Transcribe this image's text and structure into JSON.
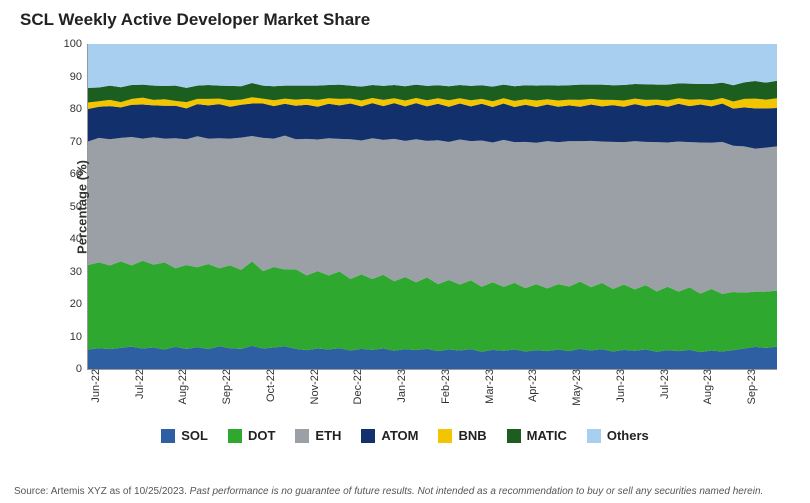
{
  "chart": {
    "type": "stacked-area-100",
    "title": "SCL Weekly Active Developer Market Share",
    "ylabel": "Percentage (%)",
    "ylim": [
      0,
      100
    ],
    "ytick_step": 10,
    "background_color": "#ffffff",
    "grid_color": "#d9d9d9",
    "axis_color": "#999999",
    "title_fontsize": 17,
    "label_fontsize": 13,
    "tick_fontsize": 11,
    "x_labels": [
      "Jun-22",
      "Jul-22",
      "Aug-22",
      "Sep-22",
      "Oct-22",
      "Nov-22",
      "Dec-22",
      "Jan-23",
      "Feb-23",
      "Mar-23",
      "Apr-23",
      "May-23",
      "Jun-23",
      "Jul-23",
      "Aug-23",
      "Sep-23"
    ],
    "points_per_label": 4,
    "series_order": [
      "SOL",
      "DOT",
      "ETH",
      "ATOM",
      "BNB",
      "MATIC",
      "Others"
    ],
    "colors": {
      "SOL": "#2e5fa3",
      "DOT": "#2fa82f",
      "ETH": "#9aa0a6",
      "ATOM": "#12306b",
      "BNB": "#f2c500",
      "MATIC": "#1b5e20",
      "Others": "#a9cff0"
    },
    "series": {
      "SOL": [
        6,
        6.4,
        6.1,
        6.5,
        6.9,
        6.3,
        6.6,
        6.0,
        6.8,
        6.2,
        6.7,
        6.1,
        7.0,
        6.4,
        6.2,
        7.1,
        6.3,
        6.6,
        7.0,
        6.2,
        5.8,
        6.3,
        6.0,
        6.4,
        5.7,
        6.2,
        5.9,
        6.3,
        5.6,
        6.1,
        5.8,
        6.2,
        5.5,
        6.0,
        5.7,
        6.1,
        5.3,
        5.9,
        5.6,
        6.0,
        5.4,
        5.8,
        5.5,
        6.0,
        5.5,
        6.2,
        5.7,
        6.1,
        5.4,
        5.9,
        5.6,
        6.0,
        5.3,
        5.8,
        5.5,
        5.9,
        5.2,
        5.7,
        5.4,
        5.8,
        6.3,
        6.8,
        6.5,
        6.9
      ],
      "DOT": [
        26,
        26.4,
        25.8,
        26.6,
        25.0,
        27.0,
        25.5,
        26.8,
        24.2,
        25.8,
        24.6,
        26.2,
        24.0,
        25.5,
        24.3,
        26.0,
        23.8,
        24.8,
        23.6,
        24.5,
        23.0,
        23.8,
        22.8,
        23.6,
        22.0,
        22.9,
        21.8,
        22.7,
        21.4,
        22.2,
        20.9,
        22.0,
        20.6,
        21.4,
        20.3,
        21.2,
        20.0,
        20.8,
        19.7,
        20.5,
        19.5,
        20.3,
        19.3,
        20.1,
        19.9,
        20.7,
        19.5,
        20.4,
        19.2,
        20.1,
        18.9,
        19.8,
        18.6,
        19.5,
        18.3,
        19.2,
        18.0,
        18.9,
        17.7,
        17.9,
        17.2,
        17.0,
        17.3,
        17.2
      ],
      "ETH": [
        38,
        38.3,
        38.8,
        38.0,
        39.5,
        37.6,
        39.2,
        38.1,
        40.0,
        38.7,
        40.3,
        38.6,
        40.0,
        39.0,
        40.7,
        38.6,
        41.0,
        39.5,
        41.2,
        40.0,
        42.0,
        40.5,
        42.2,
        40.8,
        43.0,
        41.2,
        43.3,
        41.5,
        43.8,
        41.9,
        44.0,
        42.0,
        44.3,
        42.5,
        44.6,
        42.8,
        45.0,
        43.0,
        45.2,
        43.3,
        45.0,
        43.5,
        45.3,
        43.7,
        44.7,
        43.2,
        45.0,
        43.5,
        45.3,
        43.8,
        45.6,
        44.1,
        45.9,
        44.4,
        46.2,
        44.7,
        46.5,
        45.0,
        46.8,
        45.0,
        45.0,
        44.0,
        44.3,
        44.4
      ],
      "ATOM": [
        10,
        9.6,
        10.2,
        9.4,
        9.9,
        10.5,
        9.8,
        10.1,
        10.0,
        9.5,
        9.9,
        10.2,
        10.5,
        9.8,
        10.1,
        10.0,
        10.6,
        10.0,
        9.8,
        10.3,
        10.5,
        10.1,
        10.6,
        10.3,
        11.0,
        10.5,
        10.8,
        10.4,
        11.0,
        10.6,
        11.1,
        10.6,
        11.2,
        10.8,
        11.1,
        10.7,
        11.3,
        10.9,
        11.2,
        10.8,
        11.4,
        11.0,
        11.3,
        10.9,
        11.0,
        10.6,
        11.2,
        10.8,
        11.3,
        10.9,
        11.4,
        10.9,
        11.5,
        11.0,
        11.6,
        11.1,
        11.7,
        11.2,
        11.8,
        11.4,
        12.0,
        12.4,
        12.1,
        11.8
      ],
      "BNB": [
        2.0,
        1.7,
        1.9,
        1.6,
        1.8,
        2.1,
        1.7,
        2.0,
        1.5,
        1.9,
        1.6,
        2.0,
        1.7,
        2.0,
        1.6,
        1.9,
        1.5,
        1.8,
        1.6,
        1.9,
        1.8,
        2.1,
        1.7,
        2.0,
        1.5,
        1.8,
        1.6,
        1.9,
        1.5,
        1.8,
        1.6,
        1.9,
        1.7,
        2.0,
        1.6,
        1.9,
        1.5,
        1.8,
        1.6,
        1.9,
        1.7,
        2.0,
        1.6,
        1.9,
        1.8,
        2.1,
        1.7,
        2.0,
        1.6,
        1.9,
        1.7,
        2.0,
        1.6,
        1.9,
        1.7,
        2.0,
        1.6,
        1.9,
        1.7,
        2.2,
        2.6,
        3.0,
        2.7,
        3.0
      ],
      "MATIC": [
        4.5,
        4.2,
        4.4,
        4.6,
        4.3,
        4.0,
        4.4,
        4.1,
        4.7,
        4.4,
        4.1,
        4.3,
        4.0,
        4.4,
        4.1,
        4.4,
        4.0,
        4.3,
        4.0,
        4.3,
        4.1,
        4.4,
        4.1,
        4.4,
        4.0,
        4.3,
        4.0,
        4.3,
        4.1,
        4.4,
        4.1,
        4.4,
        4.0,
        4.3,
        4.1,
        4.4,
        4.2,
        4.5,
        4.2,
        4.5,
        4.3,
        4.6,
        4.3,
        4.6,
        4.4,
        4.7,
        4.4,
        4.7,
        4.5,
        4.8,
        4.5,
        4.8,
        4.6,
        4.9,
        4.6,
        4.9,
        4.7,
        5.0,
        4.7,
        5.0,
        5.1,
        5.4,
        5.2,
        5.4
      ],
      "Others": [
        13.5,
        13.4,
        12.8,
        13.3,
        12.6,
        12.5,
        12.8,
        12.9,
        12.8,
        13.5,
        12.8,
        12.6,
        12.8,
        12.9,
        13.0,
        12.0,
        12.8,
        13.0,
        12.8,
        12.8,
        12.8,
        12.8,
        12.6,
        12.5,
        12.8,
        13.1,
        12.6,
        12.9,
        12.6,
        13.0,
        12.5,
        12.9,
        12.7,
        13.0,
        12.6,
        12.9,
        12.7,
        13.1,
        12.5,
        13.0,
        12.7,
        12.8,
        12.7,
        12.8,
        12.7,
        12.5,
        12.5,
        12.5,
        12.7,
        12.6,
        12.3,
        12.4,
        12.5,
        12.5,
        12.1,
        12.2,
        12.3,
        12.3,
        11.9,
        12.7,
        11.8,
        11.4,
        11.9,
        11.3
      ]
    },
    "source_prefix": "Source: Artemis XYZ as of 10/25/2023. ",
    "source_italic": "Past performance is no guarantee of future results. Not intended as a recommendation to buy or sell any securities named herein."
  }
}
